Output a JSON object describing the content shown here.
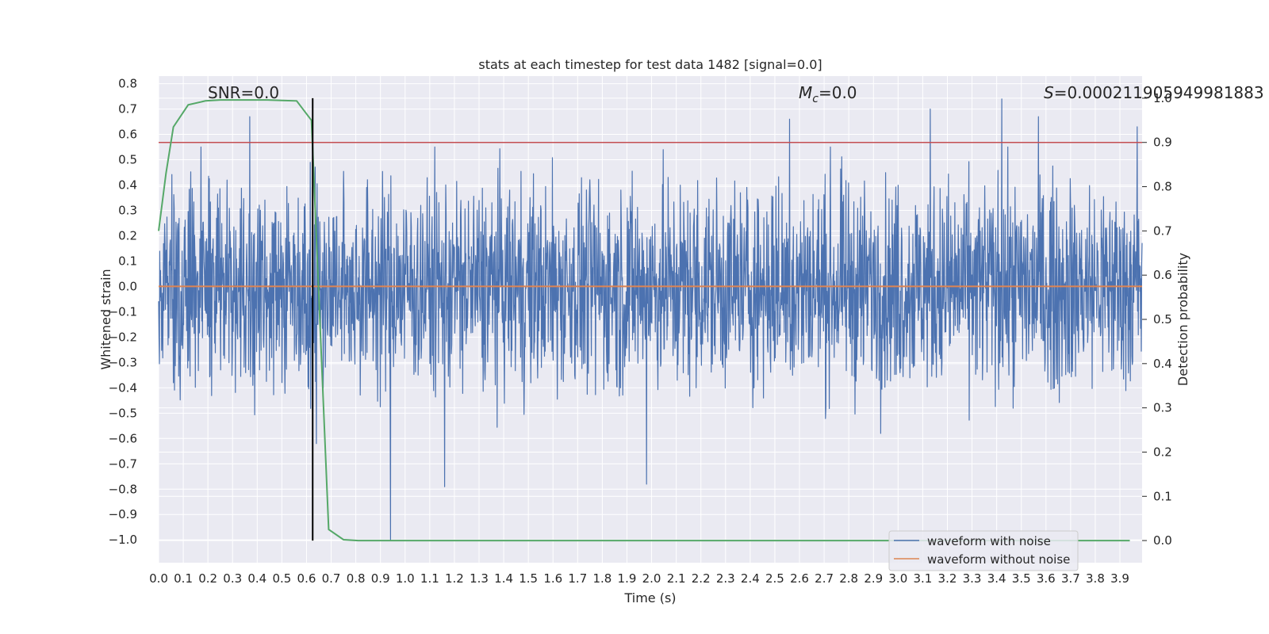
{
  "chart_data": {
    "type": "line",
    "title": "stats at each timestep for test data 1482 [signal=0.0]",
    "xlabel": "Time (s)",
    "ylabel": "Whitened strain",
    "y2label": "Detection probability",
    "xlim": [
      0.0,
      3.99
    ],
    "ylim": [
      -1.09,
      0.83
    ],
    "y2lim": [
      -0.05,
      1.05
    ],
    "grid": true,
    "x_ticks": [
      "0.0",
      "0.1",
      "0.2",
      "0.3",
      "0.4",
      "0.5",
      "0.6",
      "0.7",
      "0.8",
      "0.9",
      "1.0",
      "1.1",
      "1.2",
      "1.3",
      "1.4",
      "1.5",
      "1.6",
      "1.7",
      "1.8",
      "1.9",
      "2.0",
      "2.1",
      "2.2",
      "2.3",
      "2.4",
      "2.5",
      "2.6",
      "2.7",
      "2.8",
      "2.9",
      "3.0",
      "3.1",
      "3.2",
      "3.3",
      "3.4",
      "3.5",
      "3.6",
      "3.7",
      "3.8",
      "3.9"
    ],
    "y_ticks": [
      "0.8",
      "0.7",
      "0.6",
      "0.5",
      "0.4",
      "0.3",
      "0.2",
      "0.1",
      "0.0",
      "−0.1",
      "−0.2",
      "−0.3",
      "−0.4",
      "−0.5",
      "−0.6",
      "−0.7",
      "−0.8",
      "−0.9",
      "−1.0"
    ],
    "y2_ticks": [
      "1.0",
      "0.9",
      "0.8",
      "0.7",
      "0.6",
      "0.5",
      "0.4",
      "0.3",
      "0.2",
      "0.1",
      "0.0"
    ],
    "annotations": {
      "snr": "SNR=0.0",
      "mc_sym": "M",
      "mc_sub": "c",
      "mc_val": "=0.0",
      "s_sym": "S",
      "s_val": "=0.000211905949981883"
    },
    "legend": {
      "placement": "lower right",
      "entries": [
        "waveform with noise",
        "waveform without noise"
      ]
    },
    "series": [
      {
        "name": "waveform with noise",
        "color": "#4c72b0",
        "axis": "left",
        "kind": "noise",
        "x_range": [
          0.0,
          3.99
        ],
        "typical_min": -0.45,
        "typical_max": 0.45,
        "extremes": [
          {
            "x": 0.37,
            "y": 0.67
          },
          {
            "x": 0.64,
            "y": -0.62
          },
          {
            "x": 0.94,
            "y": -1.0
          },
          {
            "x": 1.16,
            "y": -0.79
          },
          {
            "x": 1.98,
            "y": -0.78
          },
          {
            "x": 2.56,
            "y": 0.66
          },
          {
            "x": 3.13,
            "y": 0.7
          },
          {
            "x": 3.42,
            "y": 0.74
          },
          {
            "x": 3.57,
            "y": 0.67
          },
          {
            "x": 3.97,
            "y": 0.63
          }
        ]
      },
      {
        "name": "waveform without noise",
        "color": "#dd8452",
        "axis": "left",
        "x": [
          0.0,
          3.99
        ],
        "y": [
          0.0,
          0.0
        ]
      },
      {
        "name": "detection probability",
        "color": "#55a868",
        "axis": "right",
        "x": [
          0.0,
          0.03,
          0.06,
          0.12,
          0.19,
          0.25,
          0.31,
          0.38,
          0.44,
          0.5,
          0.56,
          0.62,
          0.69,
          0.75,
          0.81,
          0.88,
          1.0,
          2.0,
          3.0,
          3.94
        ],
        "y": [
          0.7,
          0.83,
          0.935,
          0.985,
          0.994,
          0.996,
          0.996,
          0.996,
          0.996,
          0.995,
          0.994,
          0.95,
          0.025,
          0.002,
          0.0,
          0.0,
          0.0,
          0.0,
          0.0,
          0.0
        ]
      }
    ],
    "hlines": [
      {
        "axis": "right",
        "y": 0.9,
        "color": "#c44e52"
      }
    ],
    "vlines": [
      {
        "x": 0.625,
        "y2_from": 0.0,
        "y2_to": 1.0,
        "color": "#000000"
      }
    ]
  }
}
